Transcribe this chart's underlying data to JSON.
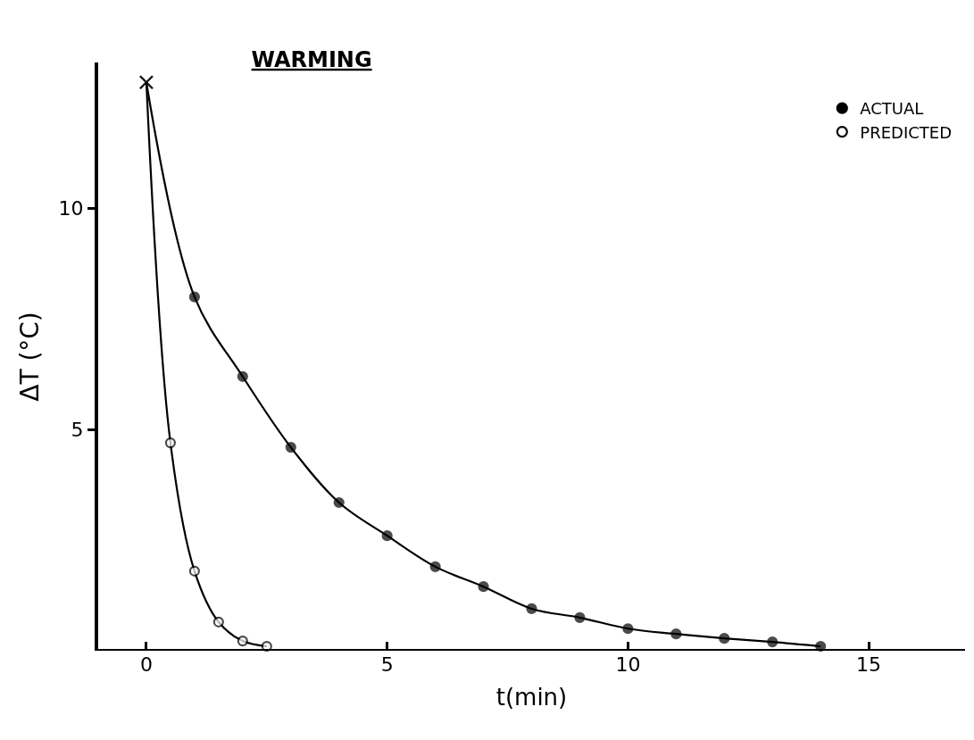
{
  "chart_data": {
    "type": "line",
    "title": "WARMING",
    "xlabel": "t(min)",
    "ylabel": "ΔT (°C)",
    "xlim": [
      -1,
      17
    ],
    "ylim": [
      0,
      13.3
    ],
    "xticks": [
      0,
      5,
      10,
      15
    ],
    "yticks": [
      5,
      10
    ],
    "legend": "top right",
    "series": [
      {
        "name": "ACTUAL",
        "color": "#000000",
        "marker": [
          "cross",
          "circle",
          "circle",
          "circle",
          "circle",
          "circle",
          "circle",
          "circle",
          "circle",
          "circle",
          "circle",
          "circle",
          "circle",
          "circle",
          "circle"
        ],
        "x": [
          0,
          1,
          2,
          3,
          4,
          5,
          6,
          7,
          8,
          9,
          10,
          11,
          12,
          13,
          14
        ],
        "values": [
          12.85,
          8.0,
          6.2,
          4.6,
          3.35,
          2.6,
          1.9,
          1.45,
          0.95,
          0.75,
          0.5,
          0.38,
          0.28,
          0.2,
          0.1
        ]
      },
      {
        "name": "PREDICTED",
        "color": "#000000",
        "marker": [
          "cross",
          "circle",
          "circle",
          "circle",
          "circle",
          "circle"
        ],
        "x": [
          0,
          0.5,
          1,
          1.5,
          2,
          2.5
        ],
        "values": [
          12.85,
          4.7,
          1.8,
          0.65,
          0.22,
          0.1
        ]
      }
    ]
  }
}
